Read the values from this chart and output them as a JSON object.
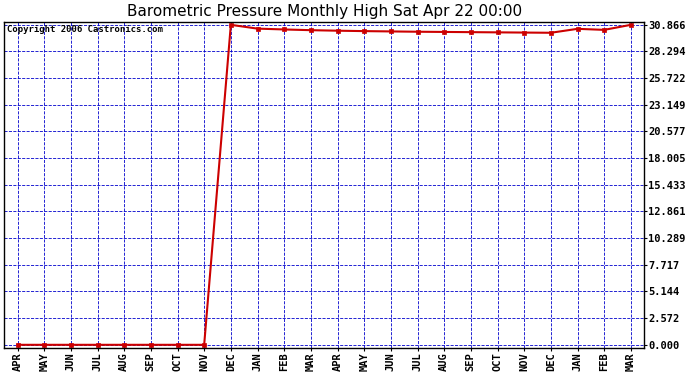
{
  "title": "Barometric Pressure Monthly High Sat Apr 22 00:00",
  "copyright": "Copyright 2006 Castronics.com",
  "x_labels": [
    "APR",
    "MAY",
    "JUN",
    "JUL",
    "AUG",
    "SEP",
    "OCT",
    "NOV",
    "DEC",
    "JAN",
    "FEB",
    "MAR",
    "APR",
    "MAY",
    "JUN",
    "JUL",
    "AUG",
    "SEP",
    "OCT",
    "NOV",
    "DEC",
    "JAN",
    "FEB",
    "MAR"
  ],
  "y_ticks": [
    0.0,
    2.572,
    5.144,
    7.717,
    10.289,
    12.861,
    15.433,
    18.005,
    20.577,
    23.149,
    25.722,
    28.294,
    30.866
  ],
  "y_min": 0.0,
  "y_max": 30.866,
  "line_color": "#cc0000",
  "marker_color": "#cc0000",
  "outer_bg_color": "#ffffff",
  "plot_bg_color": "#ffffff",
  "grid_color": "#0000cc",
  "border_color": "#000000",
  "title_color": "#000000",
  "data_y": [
    0.0,
    0.0,
    0.0,
    0.0,
    0.0,
    0.0,
    0.0,
    0.0,
    30.866,
    30.5,
    30.42,
    30.35,
    30.3,
    30.26,
    30.23,
    30.2,
    30.18,
    30.16,
    30.14,
    30.12,
    30.1,
    30.48,
    30.38,
    30.866
  ],
  "title_fontsize": 11,
  "label_fontsize": 7.5,
  "copyright_fontsize": 6.5
}
